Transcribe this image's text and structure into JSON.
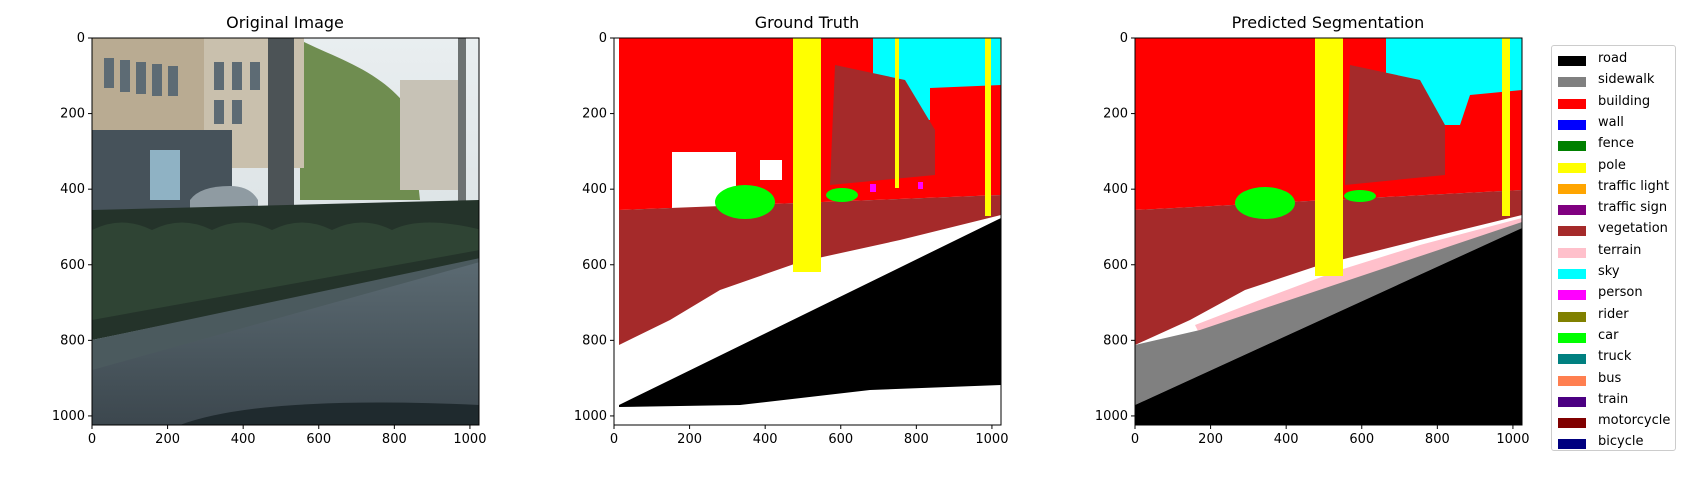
{
  "panels": [
    {
      "title": "Original Image",
      "x_ticks": [
        "0",
        "200",
        "400",
        "600",
        "800",
        "1000"
      ],
      "y_ticks": [
        "0",
        "200",
        "400",
        "600",
        "800",
        "1000"
      ]
    },
    {
      "title": "Ground Truth",
      "x_ticks": [
        "0",
        "200",
        "400",
        "600",
        "800",
        "1000"
      ],
      "y_ticks": [
        "0",
        "200",
        "400",
        "600",
        "800",
        "1000"
      ]
    },
    {
      "title": "Predicted Segmentation",
      "x_ticks": [
        "0",
        "200",
        "400",
        "600",
        "800",
        "1000"
      ],
      "y_ticks": [
        "0",
        "200",
        "400",
        "600",
        "800",
        "1000"
      ]
    }
  ],
  "axis_range": {
    "x": [
      0,
      1024
    ],
    "y": [
      0,
      1024
    ]
  },
  "legend": [
    {
      "label": "road",
      "color": "#000000"
    },
    {
      "label": "sidewalk",
      "color": "#808080"
    },
    {
      "label": "building",
      "color": "#ff0000"
    },
    {
      "label": "wall",
      "color": "#0000ff"
    },
    {
      "label": "fence",
      "color": "#008000"
    },
    {
      "label": "pole",
      "color": "#ffff00"
    },
    {
      "label": "traffic light",
      "color": "#ffa500"
    },
    {
      "label": "traffic sign",
      "color": "#800080"
    },
    {
      "label": "vegetation",
      "color": "#a52a2a"
    },
    {
      "label": "terrain",
      "color": "#ffc0cb"
    },
    {
      "label": "sky",
      "color": "#00ffff"
    },
    {
      "label": "person",
      "color": "#ff00ff"
    },
    {
      "label": "rider",
      "color": "#808000"
    },
    {
      "label": "car",
      "color": "#00ff00"
    },
    {
      "label": "truck",
      "color": "#008080"
    },
    {
      "label": "bus",
      "color": "#ff7f50"
    },
    {
      "label": "train",
      "color": "#4b0082"
    },
    {
      "label": "motorcycle",
      "color": "#800000"
    },
    {
      "label": "bicycle",
      "color": "#000080"
    }
  ]
}
